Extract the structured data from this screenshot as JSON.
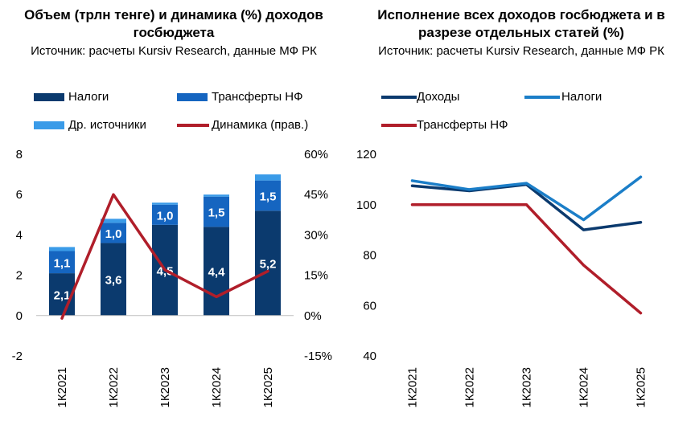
{
  "left": {
    "title_line1": "Объем (трлн тенге) и динамика (%) доходов",
    "title_line2": "госбюджета",
    "source": "Источник: расчеты Kursiv Research, данные МФ РК",
    "legend": [
      {
        "label": "Налоги",
        "color": "#0B3A6E",
        "kind": "box"
      },
      {
        "label": "Трансферты НФ",
        "color": "#1565C0",
        "kind": "box"
      },
      {
        "label": "Др. источники",
        "color": "#3A9BE8",
        "kind": "box"
      },
      {
        "label": "Динамика (прав.)",
        "color": "#B01E2A",
        "kind": "line"
      }
    ]
  },
  "right": {
    "title_line1": "Исполнение всех доходов госбюджета и в",
    "title_line2": "разрезе отдельных статей (%)",
    "source": "Источник: расчеты Kursiv Research, данные МФ РК",
    "legend": [
      {
        "label": "Доходы",
        "color": "#0B3A6E"
      },
      {
        "label": "Налоги",
        "color": "#1B7EC8"
      },
      {
        "label": "Трансферты НФ",
        "color": "#B01E2A"
      }
    ]
  },
  "chart_data": [
    {
      "type": "bar",
      "stacked": true,
      "title": "Объем (трлн тенге) и динамика (%) доходов госбюджета",
      "categories": [
        "1К2021",
        "1К2022",
        "1К2023",
        "1К2024",
        "1К2025"
      ],
      "ylim": [
        -2,
        8
      ],
      "yticks": [
        "-2",
        "0",
        "2",
        "4",
        "6",
        "8"
      ],
      "y2lim": [
        -15,
        60
      ],
      "y2ticks": [
        "-15%",
        "0%",
        "15%",
        "30%",
        "45%",
        "60%"
      ],
      "series": [
        {
          "name": "Налоги",
          "values": [
            2.1,
            3.6,
            4.5,
            4.4,
            5.2
          ],
          "labels": [
            "2,1",
            "3,6",
            "4,5",
            "4,4",
            "5,2"
          ],
          "color": "#0B3A6E"
        },
        {
          "name": "Трансферты НФ",
          "values": [
            1.1,
            1.0,
            1.0,
            1.5,
            1.5
          ],
          "labels": [
            "1,1",
            "1,0",
            "1,0",
            "1,5",
            "1,5"
          ],
          "color": "#1565C0"
        },
        {
          "name": "Др. источники",
          "values": [
            0.2,
            0.2,
            0.1,
            0.1,
            0.3
          ],
          "color": "#3A9BE8"
        }
      ],
      "line_series": {
        "name": "Динамика (прав.)",
        "axis": "right",
        "values": [
          -1,
          45,
          17,
          7,
          16.5
        ],
        "color": "#B01E2A"
      }
    },
    {
      "type": "line",
      "title": "Исполнение всех доходов госбюджета и в разрезе отдельных статей (%)",
      "categories": [
        "1К2021",
        "1К2022",
        "1К2023",
        "1К2024",
        "1К2025"
      ],
      "ylim": [
        40,
        120
      ],
      "yticks": [
        "40",
        "60",
        "80",
        "100",
        "120"
      ],
      "series": [
        {
          "name": "Доходы",
          "values": [
            107.5,
            105.5,
            108,
            90,
            93
          ],
          "color": "#0B3A6E"
        },
        {
          "name": "Налоги",
          "values": [
            109.5,
            106,
            108.5,
            94,
            111
          ],
          "color": "#1B7EC8"
        },
        {
          "name": "Трансферты НФ",
          "values": [
            100,
            100,
            100,
            76,
            57
          ],
          "color": "#B01E2A"
        }
      ]
    }
  ]
}
